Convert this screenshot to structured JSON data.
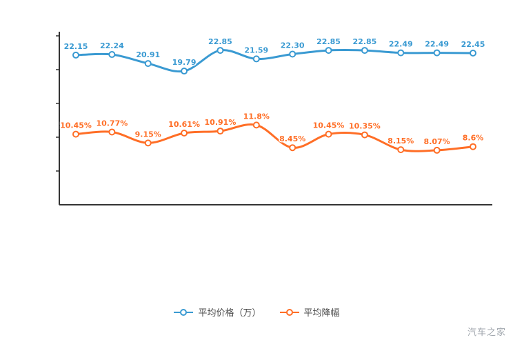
{
  "watermark": "汽车之家",
  "chart_data": {
    "type": "line",
    "title": "",
    "xlabel": "",
    "ylabel": "",
    "ylim": [
      0,
      25
    ],
    "y_ticks": [
      5,
      10,
      15,
      20,
      25
    ],
    "grid": false,
    "legend_position": "bottom",
    "x_tick_labels_visible": false,
    "y_tick_labels_visible": false,
    "series": [
      {
        "name": "平均价格（万）",
        "color": "#3a9ad2",
        "values": [
          22.15,
          22.24,
          20.91,
          19.79,
          22.85,
          21.59,
          22.3,
          22.85,
          22.85,
          22.49,
          22.49,
          22.45
        ],
        "labels": [
          "22.15",
          "22.24",
          "20.91",
          "19.79",
          "22.85",
          "21.59",
          "22.30",
          "22.85",
          "22.85",
          "22.49",
          "22.49",
          "22.45"
        ]
      },
      {
        "name": "平均降幅",
        "color": "#ff6e26",
        "values": [
          10.45,
          10.77,
          9.15,
          10.61,
          10.91,
          11.8,
          8.45,
          10.45,
          10.35,
          8.15,
          8.07,
          8.6
        ],
        "labels": [
          "10.45%",
          "10.77%",
          "9.15%",
          "10.61%",
          "10.91%",
          "11.8%",
          "8.45%",
          "10.45%",
          "10.35%",
          "8.15%",
          "8.07%",
          "8.6%"
        ]
      }
    ]
  }
}
